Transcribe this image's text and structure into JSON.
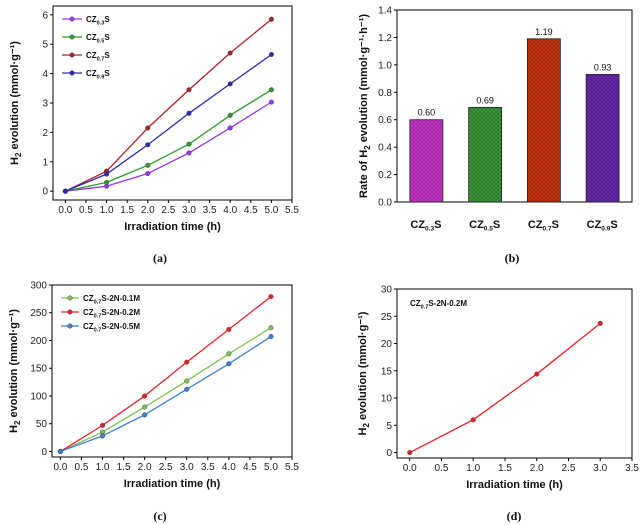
{
  "chart_data": [
    {
      "panel": "(a)",
      "type": "line",
      "xlabel": "Irradiation time (h)",
      "ylabel": "H₂ evolution (mmol·g⁻¹)",
      "xlim": [
        -0.3,
        5.5
      ],
      "ylim": [
        -0.3,
        6.3
      ],
      "xticks": [
        0.0,
        0.5,
        1.0,
        1.5,
        2.0,
        2.5,
        3.0,
        3.5,
        4.0,
        4.5,
        5.0,
        5.5
      ],
      "yticks": [
        0,
        1,
        2,
        3,
        4,
        5,
        6
      ],
      "x": [
        0,
        1,
        2,
        3,
        4,
        5
      ],
      "legend_position": "top-left",
      "series": [
        {
          "name": "CZ0.3S",
          "base": "CZ",
          "sub": "0.3",
          "suffix": "S",
          "color": "#9933ff",
          "values": [
            0,
            0.17,
            0.6,
            1.3,
            2.15,
            3.03
          ]
        },
        {
          "name": "CZ0.5S",
          "base": "CZ",
          "sub": "0.5",
          "suffix": "S",
          "color": "#2e9a2e",
          "values": [
            0,
            0.3,
            0.88,
            1.6,
            2.58,
            3.45
          ]
        },
        {
          "name": "CZ0.7S",
          "base": "CZ",
          "sub": "0.7",
          "suffix": "S",
          "color": "#b0202a",
          "values": [
            0,
            0.68,
            2.15,
            3.45,
            4.7,
            5.85
          ]
        },
        {
          "name": "CZ0.9S",
          "base": "CZ",
          "sub": "0.9",
          "suffix": "S",
          "color": "#2a2ab8",
          "values": [
            0,
            0.58,
            1.58,
            2.65,
            3.65,
            4.65
          ]
        }
      ]
    },
    {
      "panel": "(b)",
      "type": "bar",
      "ylabel": "Rate of H₂ evolution (mmol·g⁻¹·h⁻¹)",
      "ylim": [
        0,
        1.4
      ],
      "yticks": [
        0.0,
        0.2,
        0.4,
        0.6,
        0.8,
        1.0,
        1.2,
        1.4
      ],
      "categories": [
        {
          "label": "CZ0.3S",
          "base": "CZ",
          "sub": "0.3",
          "suffix": "S"
        },
        {
          "label": "CZ0.5S",
          "base": "CZ",
          "sub": "0.5",
          "suffix": "S"
        },
        {
          "label": "CZ0.7S",
          "base": "CZ",
          "sub": "0.7",
          "suffix": "S"
        },
        {
          "label": "CZ0.9S",
          "base": "CZ",
          "sub": "0.9",
          "suffix": "S"
        }
      ],
      "values": [
        0.6,
        0.69,
        1.19,
        0.93
      ],
      "value_labels": [
        "0.60",
        "0.69",
        "1.19",
        "0.93"
      ],
      "colors": [
        "#cc33cc",
        "#3c9a3c",
        "#cc3311",
        "#6a2ab0"
      ]
    },
    {
      "panel": "(c)",
      "type": "line",
      "xlabel": "Irradiation time (h)",
      "ylabel": "H₂ evolution (mmol·g⁻¹)",
      "xlim": [
        -0.2,
        5.5
      ],
      "ylim": [
        -10,
        300
      ],
      "xticks": [
        0.0,
        0.5,
        1.0,
        1.5,
        2.0,
        2.5,
        3.0,
        3.5,
        4.0,
        4.5,
        5.0,
        5.5
      ],
      "yticks": [
        0,
        50,
        100,
        150,
        200,
        250,
        300
      ],
      "x": [
        0,
        1,
        2,
        3,
        4,
        5
      ],
      "legend_position": "top-left",
      "series": [
        {
          "name": "CZ0.7S-2N-0.1M",
          "base": "CZ",
          "sub": "0.7",
          "suffix": "S-2N-0.1M",
          "color": "#7dc24f",
          "values": [
            0,
            35,
            80,
            127,
            176,
            223
          ]
        },
        {
          "name": "CZ0.7S-2N-0.2M",
          "base": "CZ",
          "sub": "0.7",
          "suffix": "S-2N-0.2M",
          "color": "#e8202a",
          "values": [
            0,
            47,
            100,
            161,
            220,
            279
          ]
        },
        {
          "name": "CZ0.7S-2N-0.5M",
          "base": "CZ",
          "sub": "0.7",
          "suffix": "S-2N-0.5M",
          "color": "#3a7fd8",
          "values": [
            0,
            28,
            66,
            112,
            158,
            207
          ]
        }
      ]
    },
    {
      "panel": "(d)",
      "type": "line",
      "xlabel": "Irradiation time (h)",
      "ylabel": "H₂ evolution (mmol·g⁻¹)",
      "xlim": [
        -0.2,
        3.5
      ],
      "ylim": [
        -1,
        30
      ],
      "xticks": [
        0.0,
        0.5,
        1.0,
        1.5,
        2.0,
        2.5,
        3.0,
        3.5
      ],
      "yticks": [
        0,
        5,
        10,
        15,
        20,
        25,
        30
      ],
      "x": [
        0,
        1,
        2,
        3
      ],
      "annotation": {
        "base": "CZ",
        "sub": "0.7",
        "suffix": "S-2N-0.2M"
      },
      "series": [
        {
          "name": "CZ0.7S-2N-0.2M",
          "color": "#e8202a",
          "values": [
            0,
            6.0,
            14.4,
            23.7
          ]
        }
      ]
    }
  ]
}
